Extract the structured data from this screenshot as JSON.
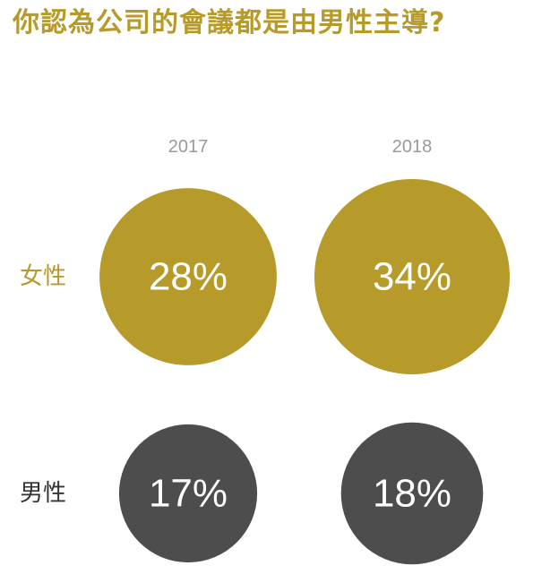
{
  "chart_data": {
    "type": "bubble",
    "title": "你認為公司的會議都是由男性主導?",
    "categories": [
      "2017",
      "2018"
    ],
    "series": [
      {
        "name": "女性",
        "values": [
          28,
          34
        ],
        "unit": "%",
        "labels": [
          "28%",
          "34%"
        ]
      },
      {
        "name": "男性",
        "values": [
          17,
          18
        ],
        "unit": "%",
        "labels": [
          "17%",
          "18%"
        ]
      }
    ]
  },
  "colors": {
    "title": "#b69a2a",
    "female": "#b69a2a",
    "male": "#4d4d4d",
    "female_label": "#b69a2a",
    "male_label": "#333333",
    "year_label": "#9a9a9a"
  }
}
